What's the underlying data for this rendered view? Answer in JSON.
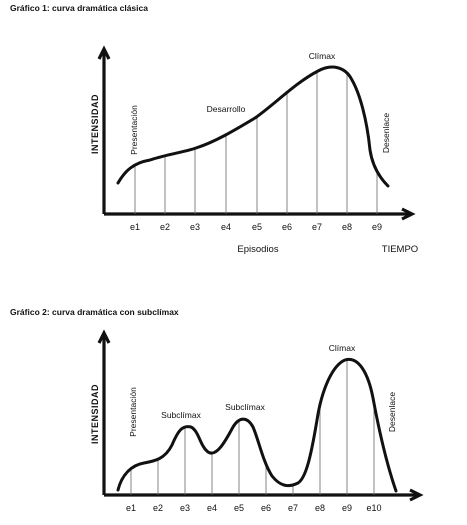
{
  "charts": [
    {
      "title": "Gráfico 1: curva dramática clásica",
      "y_axis_label": "INTENSIDAD",
      "x_axis_label": "Episodios",
      "x_axis_end_label": "TIEMPO",
      "episodes": [
        "e1",
        "e2",
        "e3",
        "e4",
        "e5",
        "e6",
        "e7",
        "e8",
        "e9"
      ],
      "annotations": {
        "presentacion": "Presentación",
        "desarrollo": "Desarrollo",
        "climax": "Clímax",
        "desenlace": "Desenlace"
      }
    },
    {
      "title": "Gráfico 2: curva dramática con subclímax",
      "y_axis_label": "INTENSIDAD",
      "episodes": [
        "e1",
        "e2",
        "e3",
        "e4",
        "e5",
        "e6",
        "e7",
        "e8",
        "e9",
        "e10"
      ],
      "annotations": {
        "presentacion": "Presentación",
        "subclimax_1": "Subclímax",
        "subclimax_2": "Subclímax",
        "climax": "Clímax",
        "desenlace": "Desenlace"
      }
    }
  ]
}
